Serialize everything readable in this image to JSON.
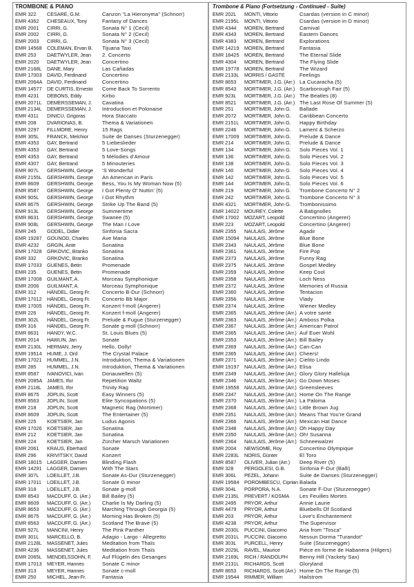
{
  "left": {
    "heading": "TROMBONE & PIANO",
    "rows": [
      [
        "EMR 322",
        "CESARE, G.M.",
        "Canzon \"La Hieronyma\" (Schnorr)"
      ],
      [
        "EMR 4362",
        "CHESEAUX, Tony",
        "Fantasy of Dances"
      ],
      [
        "EMR 2001",
        "CIRRI, G.",
        "Sonata N° 1 (Cecil)"
      ],
      [
        "EMR 2002",
        "CIRRI, G.",
        "Sonata N° 2 (Cecil)"
      ],
      [
        "EMR 2003",
        "CIRRI, G.",
        "Sonata N° 3 (Cecil)"
      ],
      [
        "EMR 14568",
        "COLEMAN, Ervan B.",
        "Tijuana Taxi"
      ],
      [
        "EMR 253",
        "DAETWYLER, Jean",
        "2. Concerto"
      ],
      [
        "EMR 2020",
        "DAETWYLER, Jean",
        "Concertino"
      ],
      [
        "EMR 2168L",
        "DANE, Mary",
        "Las Cañadas"
      ],
      [
        "EMR 17003",
        "DAVID, Ferdinand",
        "Concertino"
      ],
      [
        "EMR 2064A",
        "DAVID, Ferdinand",
        "Concertino"
      ],
      [
        "EMR 14577",
        "DE CURTIS, Ernesto",
        "Come Back To Sorrento"
      ],
      [
        "EMR 4231",
        "DEBONS, Eddy",
        "Kirbo"
      ],
      [
        "EMR 2071L",
        "DEMERSSEMAN, J.",
        "Cavatina"
      ],
      [
        "EMR 2134L",
        "DEMERSSEMAN, J.",
        "Introduction et Polonaise"
      ],
      [
        "EMR 4311",
        "DINICU, Grigoras",
        "Hora Staccato"
      ],
      [
        "EMR 208",
        "DVARIONAS, B.",
        "Thema & Variationen"
      ],
      [
        "EMR 2297",
        "FILLMORE, Henry",
        "15 Rags"
      ],
      [
        "EMR 305L",
        "FRANCK, Melchior",
        "Suite de Danses (Sturzenegger)"
      ],
      [
        "EMR 4353",
        "GAY, Bertrand",
        "5 Liebeslieder"
      ],
      [
        "EMR 4353",
        "GAY, Bertrand",
        "5 Love-Songs"
      ],
      [
        "EMR 4353",
        "GAY, Bertrand",
        "5 Mélodies d'Amour"
      ],
      [
        "EMR 4307",
        "GAY, Bertrand",
        "5 Minouteries"
      ],
      [
        "EMR 907L",
        "GERSHWIN, George",
        "'S Wonderful"
      ],
      [
        "EMR 2155L",
        "GERSHWIN, George",
        "An American in Paris"
      ],
      [
        "EMR 8609",
        "GERSHWIN, George",
        "Bess, You Is My Woman Now (5)"
      ],
      [
        "EMR 8587",
        "GERSHWIN, George",
        "I Got Plenty O' Nuttin' (5)"
      ],
      [
        "EMR 905L",
        "GERSHWIN, George",
        "I Got Rhythm"
      ],
      [
        "EMR 8675",
        "GERSHWIN, George",
        "Strike Up The Band (5)"
      ],
      [
        "EMR 913L",
        "GERSHWIN, George",
        "Summertime"
      ],
      [
        "EMR 8631",
        "GERSHWIN, George",
        "Swanee (5)"
      ],
      [
        "EMR 908L",
        "GERSHWIN, George",
        "The Man I Love"
      ],
      [
        "EMR 245",
        "GODEL, Didier",
        "Sinfonia Sacra"
      ],
      [
        "EMR 19287",
        "GOUNOD, Charles",
        "Ave Maria"
      ],
      [
        "EMR 4232",
        "GRGIN, Ante",
        "Sonatina"
      ],
      [
        "EMR 17028",
        "GRKOVIC, Branko",
        "Sonatina"
      ],
      [
        "EMR 332",
        "GRKOVIC, Branko",
        "Sonatina"
      ],
      [
        "EMR 17033",
        "GUENES, Betin",
        "Promenade"
      ],
      [
        "EMR 235",
        "GUENES, Betin",
        "Promenade"
      ],
      [
        "EMR 17008",
        "GUILMANT, A.",
        "Morceau Symphonique"
      ],
      [
        "EMR 2006",
        "GUILMANT, A.",
        "Morceau Symphonique"
      ],
      [
        "EMR 312",
        "HÄNDEL, Georg Fr.",
        "Concerto B-Dur (Schnorr)"
      ],
      [
        "EMR 17012",
        "HÄNDEL, Georg Fr.",
        "Concerto Bb Major"
      ],
      [
        "EMR 17005",
        "HÄNDEL, Georg Fr.",
        "Konzert f-moll (Angerer)"
      ],
      [
        "EMR 226",
        "HÄNDEL, Georg Fr.",
        "Konzert f-moll (Angerer)"
      ],
      [
        "EMR 302L",
        "HÄNDEL, Georg Fr.",
        "Prelude & Fugue (Sturzenegger)"
      ],
      [
        "EMR 316",
        "HÄNDEL, Georg Fr.",
        "Sonate g-moll (Schnorr)"
      ],
      [
        "EMR 8631",
        "HANDY, W.C.",
        "St. Louis Blues (5)"
      ],
      [
        "EMR 2014",
        "HAWLIN, Jan",
        "Sonate"
      ],
      [
        "EMR 2130L",
        "HERMAN, Jerry",
        "Hello, Dolly!"
      ],
      [
        "EMR 19514",
        "HUME, J. Ord",
        "The Crystal Palace"
      ],
      [
        "EMR 17021",
        "HUMMEL, J.N.",
        "Introduktion, Thema & Variationen"
      ],
      [
        "EMR 285",
        "HUMMEL, J.N.",
        "Introduktion, Thema & Variationen"
      ],
      [
        "EMR 8587",
        "IVANOVICI, Ivan",
        "Donauwellen (5)"
      ],
      [
        "EMR 2085A",
        "JAMES, Ifor",
        "Repetition Waltz"
      ],
      [
        "EMR 2118L",
        "JAMES, Ifor",
        "Trinity Rag"
      ],
      [
        "EMR 8675",
        "JOPLIN, Scott",
        "Easy Winners (5)"
      ],
      [
        "EMR 8563",
        "JOPLIN, Scott",
        "Elite Syncopations (5)"
      ],
      [
        "EMR 218",
        "JOPLIN, Scott",
        "Magnetic Rag (Mortimer)"
      ],
      [
        "EMR 8609",
        "JOPLIN, Scott",
        "The Entertainer (5)"
      ],
      [
        "EMR 225",
        "KOETSIER, Jan",
        "Ludus Agonis"
      ],
      [
        "EMR 17026",
        "KOETSIER, Jan",
        "Sonatina"
      ],
      [
        "EMR 212",
        "KOETSIER, Jan",
        "Sonatina"
      ],
      [
        "EMR 224",
        "KOETSIER, Jan",
        "Zürcher Marsch Variationen"
      ],
      [
        "EMR 2061",
        "KRAUS, Eberhard",
        "Sonate"
      ],
      [
        "EMR 296",
        "KRIVITSKY, David",
        "Konzert"
      ],
      [
        "EMR 18015",
        "LAGGER, Damien",
        "Blinding Flash"
      ],
      [
        "EMR 14291",
        "LAGGER, Damien",
        "With The Stars"
      ],
      [
        "EMR 307L",
        "LOEILLET, J.B.",
        "Sonate As-Dur (Sturzenegger)"
      ],
      [
        "EMR 17011",
        "LOEILLET, J.B.",
        "Sonate G minor"
      ],
      [
        "EMR 318",
        "LOEILLET, J.B.",
        "Sonate g-moll"
      ],
      [
        "EMR 8543",
        "MACDUFF, G. (Arr.)",
        "Bill Bailey (5)"
      ],
      [
        "EMR 8609",
        "MACDUFF, G. (Arr.)",
        "Charlie Is My Darling (5)"
      ],
      [
        "EMR 8653",
        "MACDUFF, G. (Arr.)",
        "Marching Through Georgia (5)"
      ],
      [
        "EMR 8675",
        "MACDUFF, G. (Arr.)",
        "Morning Has Broken (5)"
      ],
      [
        "EMR 8563",
        "MACDUFF, G. (Arr.)",
        "Scotland The Brave (5)"
      ],
      [
        "EMR 927L",
        "MANCINI, Henry",
        "The Pink Panther"
      ],
      [
        "EMR 301L",
        "MARCELLO, B.",
        "Adagio - Largo - Allegretto"
      ],
      [
        "EMR 2128L",
        "MASSENET, Jules",
        "Meditation from Thaïs"
      ],
      [
        "EMR 4236",
        "MASSENET, Jules",
        "Meditation from Thaïs"
      ],
      [
        "EMR 2065L",
        "MENDELSSOHN, F.",
        "Auf Flügeln des Gesanges"
      ],
      [
        "EMR 17013",
        "MEYER, Hannes",
        "Sonate C minor"
      ],
      [
        "EMR 313",
        "MEYER, Hannes",
        "Sonate c-moll"
      ],
      [
        "EMR 250",
        "MICHEL, Jean-Fr.",
        "Fantasia"
      ]
    ]
  },
  "right": {
    "heading": "Trombone & Piano (Fortsetzung - Continued - Suite)",
    "rows": [
      [
        "EMR 202L",
        "MONTI, Vittorio",
        "Csardas (version in C minor)"
      ],
      [
        "EMR 2195L",
        "MONTI, Vittorio",
        "Csardas (version in D minor)"
      ],
      [
        "EMR 4344",
        "MOREN, Bertrand",
        "Carnival"
      ],
      [
        "EMR 4343",
        "MOREN, Bertrand",
        "Eastern Dances"
      ],
      [
        "EMR 4383",
        "MOREN, Bertrand",
        "Explorations"
      ],
      [
        "EMR 14219",
        "MOREN, Bertrand",
        "Fantasia"
      ],
      [
        "EMR 18425",
        "MOREN, Bertrand",
        "The Eternal Slide"
      ],
      [
        "EMR 4304",
        "MOREN, Bertrand",
        "The Flying Slide"
      ],
      [
        "EMR 19778",
        "MOREN, Bertrand",
        "The Wizard"
      ],
      [
        "EMR 2133L",
        "MORRIS / GASTE",
        "Feelings"
      ],
      [
        "EMR 8653",
        "MORTIMER, J.G. (Arr.)",
        "La Cucaracha (5)"
      ],
      [
        "EMR 8543",
        "MORTIMER, J.G. (Arr.)",
        "Scarborough Fair (5)"
      ],
      [
        "EMR 923L",
        "MORTIMER, J.G. (Arr.)",
        "The Beatles (8)"
      ],
      [
        "EMR 8521",
        "MORTIMER, J.G. (Arr.)",
        "The Last Rose Of Summer (5)"
      ],
      [
        "EMR 251",
        "MORTIMER, John G.",
        "Ballade"
      ],
      [
        "EMR 2072",
        "MORTIMER, John G.",
        "Caribbean Concerto"
      ],
      [
        "EMR 2151L",
        "MORTIMER, John G.",
        "Happy Birthday"
      ],
      [
        "EMR 2246",
        "MORTIMER, John G.",
        "Lament & Scherzo"
      ],
      [
        "EMR 17009",
        "MORTIMER, John G.",
        "Prelude & Dance"
      ],
      [
        "EMR 214",
        "MORTIMER, John G.",
        "Prelude & Dance"
      ],
      [
        "EMR 134",
        "MORTIMER, John G.",
        "Solo Pieces Vol. 1"
      ],
      [
        "EMR 136",
        "MORTIMER, John G.",
        "Solo Pieces Vol. 2"
      ],
      [
        "EMR 138",
        "MORTIMER, John G.",
        "Solo Pieces Vol. 3"
      ],
      [
        "EMR 140",
        "MORTIMER, John G.",
        "Solo Pieces Vol. 4"
      ],
      [
        "EMR 142",
        "MORTIMER, John G.",
        "Solo Pieces Vol. 5"
      ],
      [
        "EMR 144",
        "MORTIMER, John G.",
        "Solo Pieces Vol. 6"
      ],
      [
        "EMR 219",
        "MORTIMER, John G.",
        "Trombone Concerto N° 2"
      ],
      [
        "EMR 242",
        "MORTIMER, John G.",
        "Trombone Concerto N° 3"
      ],
      [
        "EMR 4321",
        "MORTIMER, John G.",
        "Trombonissimo"
      ],
      [
        "EMR 14022",
        "MOUREY, Colette",
        "A Batignolles"
      ],
      [
        "EMR 17002",
        "MOZART, Leopold",
        "Concertino (Angerer)"
      ],
      [
        "EMR 223",
        "MOZART, Leopold",
        "Concertino (Angerer)"
      ],
      [
        "EMR 2355",
        "NAULAIS, Jérôme",
        "Agadir"
      ],
      [
        "EMR 15094",
        "NAULAIS, Jérôme",
        "Blue Bone"
      ],
      [
        "EMR 2343",
        "NAULAIS, Jérôme",
        "Blue Bone"
      ],
      [
        "EMR 2361",
        "NAULAIS, Jérôme",
        "Fire Pop"
      ],
      [
        "EMR 2373",
        "NAULAIS, Jérôme",
        "Funny Rag"
      ],
      [
        "EMR 2375",
        "NAULAIS, Jérôme",
        "Gospel Medley"
      ],
      [
        "EMR 2359",
        "NAULAIS, Jérôme",
        "Keep Cool"
      ],
      [
        "EMR 2358",
        "NAULAIS, Jérôme",
        "Loch Ness"
      ],
      [
        "EMR 2372",
        "NAULAIS, Jérôme",
        "Memories of Russia"
      ],
      [
        "EMR 2360",
        "NAULAIS, Jérôme",
        "Tentacion"
      ],
      [
        "EMR 2356",
        "NAULAIS, Jérôme",
        "Vlady"
      ],
      [
        "EMR 2374",
        "NAULAIS, Jérôme",
        "Wiener Medley"
      ],
      [
        "EMR 2365",
        "NAULAIS, Jérôme (Arr.)",
        "A votre santé"
      ],
      [
        "EMR 2363",
        "NAULAIS, Jérôme (Arr.)",
        "Amboss Polka"
      ],
      [
        "EMR 2367",
        "NAULAIS, Jérôme (Arr.)",
        "American Patrol"
      ],
      [
        "EMR 2365",
        "NAULAIS, Jérôme (Arr.)",
        "Auf Euer Wohl"
      ],
      [
        "EMR 2353",
        "NAULAIS, Jérôme (Arr.)",
        "Bill Bailey"
      ],
      [
        "EMR 2369",
        "NAULAIS, Jérôme (Arr.)",
        "Can-Can"
      ],
      [
        "EMR 2365",
        "NAULAIS, Jérôme (Arr.)",
        "Cheers!"
      ],
      [
        "EMR 2371",
        "NAULAIS, Jérôme (Arr.)",
        "Cielito Lindo"
      ],
      [
        "EMR 19197",
        "NAULAIS, Jérôme (Arr.)",
        "Elisa"
      ],
      [
        "EMR 2349",
        "NAULAIS, Jérôme (Arr.)",
        "Glory Glory Halleluja"
      ],
      [
        "EMR 2346",
        "NAULAIS, Jérôme (Arr.)",
        "Go Down Moses"
      ],
      [
        "EMR 19558",
        "NAULAIS, Jérôme (Arr.)",
        "Greensleeves"
      ],
      [
        "EMR 2347",
        "NAULAIS, Jérôme (Arr.)",
        "Home On The Range"
      ],
      [
        "EMR 2370",
        "NAULAIS, Jérôme (Arr.)",
        "La Paloma"
      ],
      [
        "EMR 2368",
        "NAULAIS, Jérôme (Arr.)",
        "Little Brown Jug"
      ],
      [
        "EMR 2351",
        "NAULAIS, Jérôme (Arr.)",
        "Means That You're Grand"
      ],
      [
        "EMR 2366",
        "NAULAIS, Jérôme (Arr.)",
        "Mexican Hat Dance"
      ],
      [
        "EMR 2348",
        "NAULAIS, Jérôme (Arr.)",
        "Oh Happy Day"
      ],
      [
        "EMR 2350",
        "NAULAIS, Jérôme (Arr.)",
        "Oh! Susanna"
      ],
      [
        "EMR 2364",
        "NAULAIS, Jérôme (Arr.)",
        "Schneewalzer"
      ],
      [
        "EMR 2004",
        "NEWSOME, Roy",
        "Concertino Olympique"
      ],
      [
        "EMR 2283L",
        "NORIS, Günter",
        "El Toro"
      ],
      [
        "EMR 8587",
        "OLIVER, Julian (Arr.)",
        "Deep River (5)"
      ],
      [
        "EMR 328",
        "PERGOLESI, G.B.",
        "Sinfonia F-Dur (Balli)"
      ],
      [
        "EMR 306L",
        "PEZEL, Johann",
        "Suite de Danses (Sturzenegger)"
      ],
      [
        "EMR 19584",
        "POROMBESCU, Ciprian",
        "Balada"
      ],
      [
        "EMR 304L",
        "PORPORA, N.A.",
        "Sonate F-Dur (Sturzenegger)"
      ],
      [
        "EMR 2135L",
        "PREVERT / KOSMA",
        "Les Feuilles Mortes"
      ],
      [
        "EMR 2495",
        "PRYOR, Arthur",
        "Annie Laurie"
      ],
      [
        "EMR 4479",
        "PRYOR, Arthur",
        "Bluebells Of Scotland"
      ],
      [
        "EMR 203",
        "PRYOR, Arthur",
        "Love's Enchantement"
      ],
      [
        "EMR 4238",
        "PRYOR, Arthur",
        "The Supervisor"
      ],
      [
        "EMR 2030L",
        "PUCCINI, Giacomo",
        "Aria from \"Tosca\""
      ],
      [
        "EMR 2031L",
        "PUCCINI, Giacomo",
        "Nessun Dorma \"Turandot\""
      ],
      [
        "EMR 303L",
        "PURCELL, Henry",
        "Suite (Sturzenegger)"
      ],
      [
        "EMR 2029L",
        "RAVEL, Maurice",
        "Pièce en forme de Habanera (Hilgers)"
      ],
      [
        "EMR 2169L",
        "RICH / RANDOLPH",
        "Benny Hill (Yackety Sax)"
      ],
      [
        "EMR 2131L",
        "RICHARDS, Scott",
        "Gloryland"
      ],
      [
        "EMR 8653",
        "RICHARDS, Scott (Arr.)",
        "Home On The Range (5)"
      ],
      [
        "EMR 19544",
        "RIMMER, William",
        "Hailstrom"
      ]
    ]
  }
}
